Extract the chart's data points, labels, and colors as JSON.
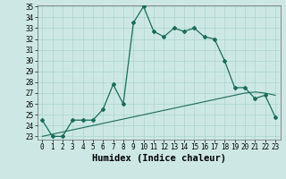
{
  "xlabel": "Humidex (Indice chaleur)",
  "x": [
    0,
    1,
    2,
    3,
    4,
    5,
    6,
    7,
    8,
    9,
    10,
    11,
    12,
    13,
    14,
    15,
    16,
    17,
    18,
    19,
    20,
    21,
    22,
    23
  ],
  "y_main": [
    24.5,
    23.0,
    23.0,
    24.5,
    24.5,
    24.5,
    25.5,
    27.8,
    26.0,
    33.5,
    35.0,
    32.7,
    32.2,
    33.0,
    32.7,
    33.0,
    32.2,
    32.0,
    30.0,
    27.5,
    27.5,
    26.5,
    26.8,
    24.8
  ],
  "y_ref": [
    23.0,
    23.2,
    23.4,
    23.6,
    23.8,
    24.0,
    24.2,
    24.4,
    24.6,
    24.8,
    25.0,
    25.2,
    25.4,
    25.6,
    25.8,
    26.0,
    26.2,
    26.4,
    26.6,
    26.8,
    27.0,
    27.1,
    27.0,
    26.8
  ],
  "line_color": "#1a6b5a",
  "bg_color": "#cde8e4",
  "grid_color": "#aad4ce",
  "ylim_min": 23,
  "ylim_max": 35,
  "yticks": [
    23,
    24,
    25,
    26,
    27,
    28,
    29,
    30,
    31,
    32,
    33,
    34,
    35
  ],
  "xticks": [
    0,
    1,
    2,
    3,
    4,
    5,
    6,
    7,
    8,
    9,
    10,
    11,
    12,
    13,
    14,
    15,
    16,
    17,
    18,
    19,
    20,
    21,
    22,
    23
  ],
  "tick_fontsize": 5.5,
  "xlabel_fontsize": 7.5
}
